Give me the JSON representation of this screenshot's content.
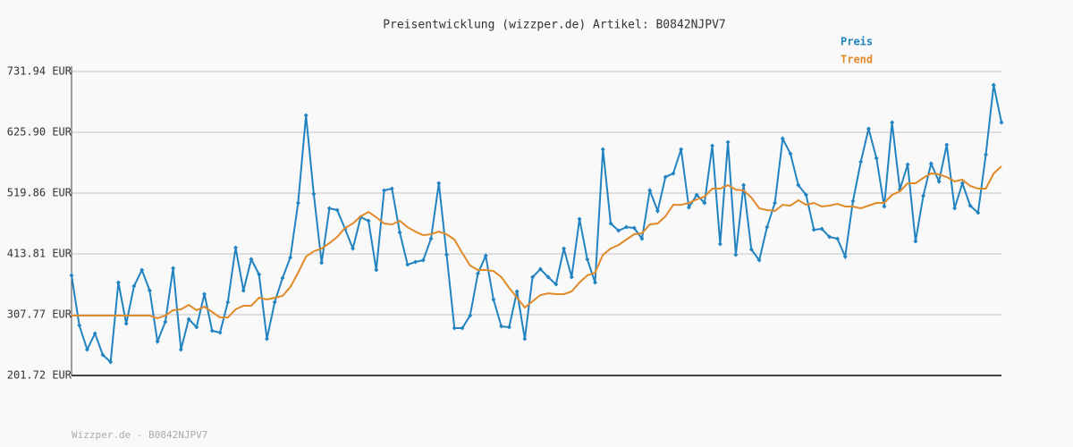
{
  "chart_data": {
    "type": "line",
    "title": "Preisentwicklung (wizzper.de) Artikel: B0842NJPV7",
    "ylim": [
      201.72,
      731.94
    ],
    "yticks": [
      {
        "value": 201.72,
        "label": "201.72 EUR"
      },
      {
        "value": 307.77,
        "label": "307.77 EUR"
      },
      {
        "value": 413.81,
        "label": "413.81 EUR"
      },
      {
        "value": 519.86,
        "label": "519.86 EUR"
      },
      {
        "value": 625.9,
        "label": "625.90 EUR"
      },
      {
        "value": 731.94,
        "label": "731.94 EUR"
      }
    ],
    "grid": true,
    "legend": "top-right",
    "series": [
      {
        "name": "Preis",
        "color": "#2183c0",
        "markers": true,
        "values": [
          376.4,
          289.0,
          246.9,
          275.0,
          237.6,
          225.1,
          363.9,
          292.2,
          357.7,
          385.7,
          349.9,
          261.0,
          295.3,
          388.8,
          246.9,
          299.9,
          285.9,
          343.6,
          279.7,
          276.5,
          329.6,
          424.7,
          349.9,
          404.4,
          377.9,
          265.6,
          329.6,
          371.7,
          407.5,
          502.7,
          655.5,
          518.3,
          398.2,
          493.3,
          490.2,
          457.5,
          423.1,
          477.7,
          471.5,
          385.7,
          524.5,
          527.6,
          451.2,
          395.0,
          399.7,
          402.8,
          440.3,
          537.0,
          412.2,
          284.3,
          284.3,
          306.2,
          379.5,
          410.6,
          334.2,
          287.4,
          285.9,
          348.3,
          265.6,
          373.2,
          387.3,
          373.2,
          360.7,
          423.1,
          373.2,
          474.6,
          404.4,
          363.9,
          596.2,
          466.8,
          454.3,
          460.5,
          459.0,
          440.3,
          524.5,
          488.6,
          547.9,
          554.1,
          596.2,
          494.9,
          516.7,
          502.7,
          602.5,
          430.9,
          608.7,
          412.2,
          533.8,
          421.6,
          402.8,
          460.5,
          502.7,
          614.9,
          588.4,
          533.8,
          516.7,
          455.9,
          457.5,
          443.4,
          440.3,
          409.1,
          505.8,
          574.4,
          632.1,
          580.6,
          496.4,
          643.0,
          526.0,
          569.7,
          435.6,
          515.1,
          571.3,
          540.1,
          604.0,
          493.3,
          537.0,
          498.0,
          485.5,
          586.9,
          708.5,
          643.0
        ]
      },
      {
        "name": "Trend",
        "color": "#e08a2a",
        "markers": false,
        "values": [
          306.2,
          306.2,
          306.2,
          306.2,
          306.2,
          306.2,
          306.2,
          306.2,
          306.2,
          306.2,
          306.2,
          301.5,
          306.2,
          315.5,
          317.1,
          324.9,
          315.5,
          321.8,
          312.4,
          303.0,
          303.0,
          317.1,
          323.3,
          323.3,
          337.4,
          334.2,
          337.4,
          340.5,
          356.1,
          381.0,
          409.1,
          418.4,
          423.1,
          432.5,
          443.4,
          459.0,
          466.8,
          479.3,
          487.1,
          477.7,
          466.8,
          465.2,
          471.5,
          460.5,
          452.7,
          446.5,
          448.1,
          452.7,
          448.1,
          438.7,
          415.3,
          393.5,
          385.7,
          385.7,
          384.1,
          373.2,
          354.5,
          337.4,
          320.2,
          331.1,
          342.0,
          345.1,
          343.6,
          343.6,
          348.3,
          363.9,
          376.4,
          381.0,
          412.2,
          423.1,
          429.4,
          438.7,
          448.1,
          449.6,
          465.2,
          466.8,
          479.3,
          499.5,
          499.5,
          502.7,
          508.9,
          513.6,
          527.6,
          527.6,
          533.8,
          526.0,
          524.5,
          512.0,
          493.3,
          490.2,
          488.6,
          499.5,
          498.0,
          507.3,
          499.5,
          502.7,
          496.4,
          498.0,
          501.1,
          496.4,
          496.4,
          493.3,
          498.0,
          502.7,
          502.7,
          516.7,
          522.9,
          537.0,
          537.0,
          546.3,
          554.1,
          552.6,
          547.9,
          540.1,
          543.2,
          532.3,
          527.6,
          527.6,
          554.1,
          566.6
        ]
      }
    ]
  },
  "footer": "Wizzper.de - B0842NJPV7"
}
